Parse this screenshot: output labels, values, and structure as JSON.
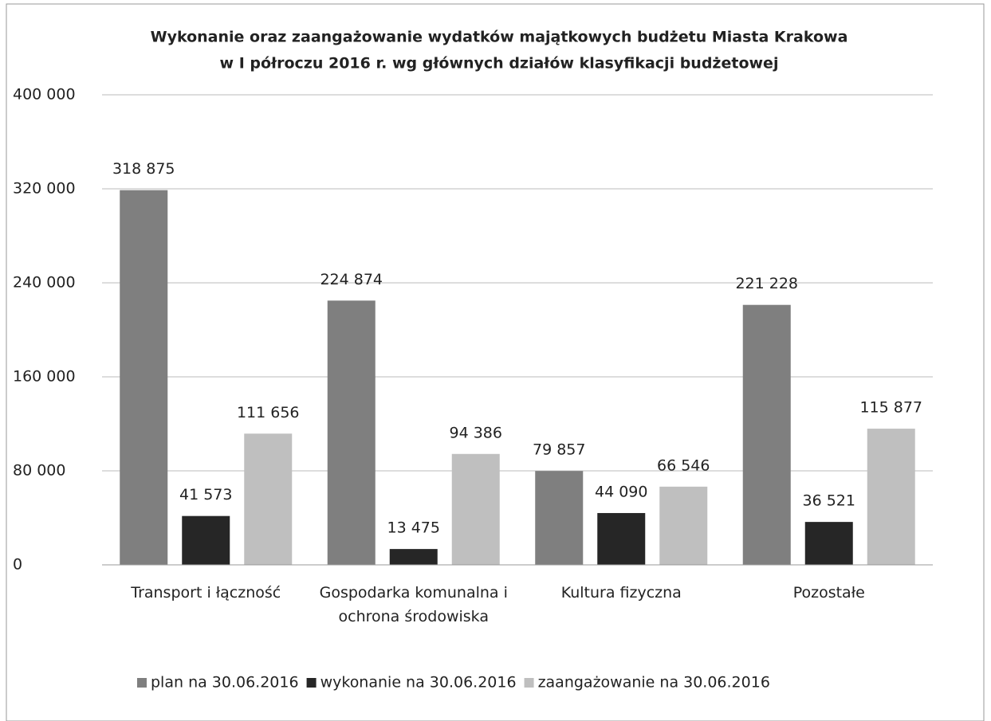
{
  "chart_data": {
    "type": "bar",
    "title": [
      "Wykonanie oraz zaangażowanie wydatków majątkowych budżetu Miasta Krakowa",
      "w I półroczu 2016 r. wg głównych działów klasyfikacji budżetowej"
    ],
    "categories": [
      "Transport i łączność",
      "Gospodarka komunalna i ochrona środowiska",
      "Kultura fizyczna",
      "Pozostałe"
    ],
    "series": [
      {
        "name": "plan na 30.06.2016",
        "color": "#7f7f7f",
        "values": [
          318875,
          224874,
          79857,
          221228
        ],
        "value_labels": [
          "318 875",
          "224 874",
          "79 857",
          "221 228"
        ]
      },
      {
        "name": "wykonanie na 30.06.2016",
        "color": "#262626",
        "values": [
          41573,
          13475,
          44090,
          36521
        ],
        "value_labels": [
          "41 573",
          "13 475",
          "44 090",
          "36 521"
        ]
      },
      {
        "name": "zaangażowanie na 30.06.2016",
        "color": "#bfbfbf",
        "values": [
          111656,
          94386,
          66546,
          115877
        ],
        "value_labels": [
          "111 656",
          "94 386",
          "66 546",
          "115 877"
        ]
      }
    ],
    "ylim": [
      0,
      400000
    ],
    "yticks": [
      0,
      {
        "value": 80000,
        "label": "80 000"
      },
      {
        "value": 160000,
        "label": "160 000"
      },
      {
        "value": 240000,
        "label": "240 000"
      },
      {
        "value": 320000,
        "label": "320 000"
      },
      {
        "value": 400000,
        "label": "400 000"
      }
    ],
    "grid": true,
    "legend": "bottom"
  }
}
